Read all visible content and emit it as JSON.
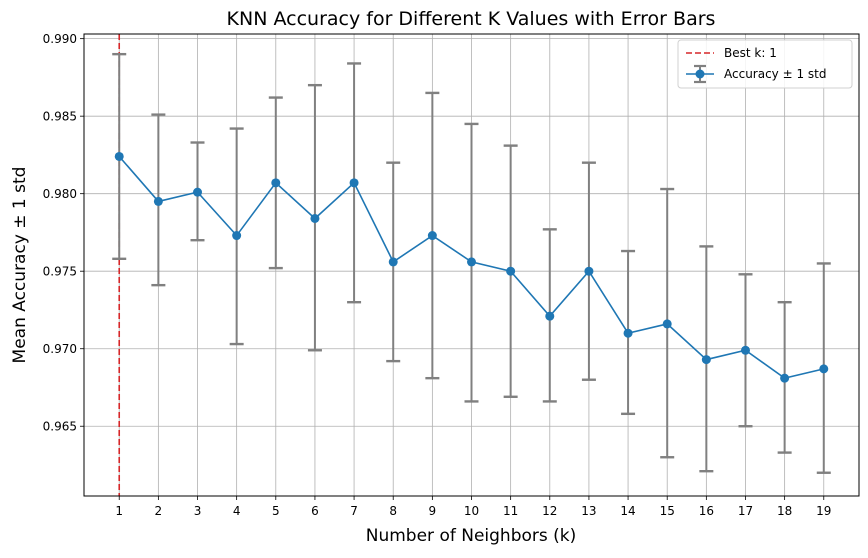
{
  "chart_data": {
    "type": "line",
    "title": "KNN Accuracy for Different K Values with Error Bars",
    "xlabel": "Number of Neighbors (k)",
    "ylabel": "Mean Accuracy ± 1 std",
    "x": [
      1,
      2,
      3,
      4,
      5,
      6,
      7,
      8,
      9,
      10,
      11,
      12,
      13,
      14,
      15,
      16,
      17,
      18,
      19
    ],
    "xlim": [
      0.1,
      19.9
    ],
    "ylim": [
      0.9605,
      0.9903
    ],
    "yticks": [
      0.965,
      0.97,
      0.975,
      0.98,
      0.985,
      0.99
    ],
    "ytick_labels": [
      "0.965",
      "0.970",
      "0.975",
      "0.980",
      "0.985",
      "0.990"
    ],
    "grid": true,
    "legend_position": "upper right",
    "series": [
      {
        "name": "Accuracy ± 1 std",
        "color": "#1f77b4",
        "marker": "circle",
        "values": [
          0.9824,
          0.9795,
          0.9801,
          0.9773,
          0.9807,
          0.9784,
          0.9807,
          0.9756,
          0.9773,
          0.9756,
          0.975,
          0.9721,
          0.975,
          0.971,
          0.9716,
          0.9693,
          0.9699,
          0.9681,
          0.9687
        ],
        "error_lower": [
          0.9758,
          0.9741,
          0.977,
          0.9703,
          0.9752,
          0.9699,
          0.973,
          0.9692,
          0.9681,
          0.9666,
          0.9669,
          0.9666,
          0.968,
          0.9658,
          0.963,
          0.9621,
          0.965,
          0.9633,
          0.962
        ],
        "error_upper": [
          0.989,
          0.9851,
          0.9833,
          0.9842,
          0.9862,
          0.987,
          0.9884,
          0.982,
          0.9865,
          0.9845,
          0.9831,
          0.9777,
          0.982,
          0.9763,
          0.9803,
          0.9766,
          0.9748,
          0.973,
          0.9755
        ],
        "error_color": "#808080"
      }
    ],
    "best_k": {
      "label": "Best k: 1",
      "x": 1,
      "color": "#d62728",
      "style": "dashed"
    }
  }
}
